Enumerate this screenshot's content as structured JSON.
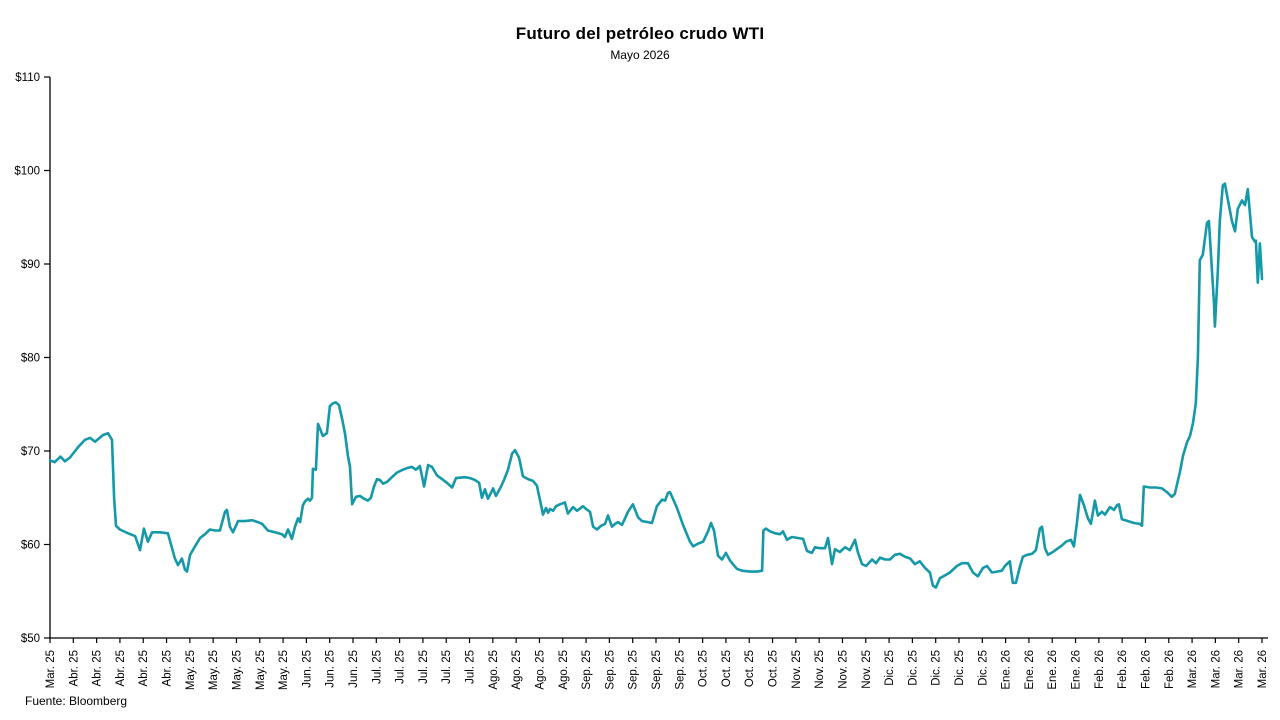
{
  "chart_data": {
    "type": "line",
    "title": "Futuro del petróleo crudo WTI",
    "subtitle": "Mayo 2026",
    "source": "Fuente: Bloomberg",
    "line_color": "#1598A8",
    "axis_color": "#000000",
    "text_color": "#000000",
    "grid": false,
    "legend_position": "none",
    "ylim": [
      50,
      110
    ],
    "y_tick_labels": [
      "$110",
      "$100",
      "$90",
      "$80",
      "$70",
      "$60",
      "$50"
    ],
    "y_tick_values": [
      110,
      100,
      90,
      80,
      70,
      60,
      50
    ],
    "x_range_weeks": [
      0,
      52
    ],
    "x_tick_labels": [
      "Mar. 25",
      "Abr. 25",
      "Abr. 25",
      "Abr. 25",
      "Abr. 25",
      "Abr. 25",
      "May. 25",
      "May. 25",
      "May. 25",
      "May. 25",
      "May. 25",
      "Jun. 25",
      "Jun. 25",
      "Jun. 25",
      "Jul. 25",
      "Jul. 25",
      "Jul. 25",
      "Jul. 25",
      "Jul. 25",
      "Ago. 25",
      "Ago. 25",
      "Ago. 25",
      "Ago. 25",
      "Sep. 25",
      "Sep. 25",
      "Sep. 25",
      "Sep. 25",
      "Sep. 25",
      "Oct. 25",
      "Oct. 25",
      "Oct. 25",
      "Oct. 25",
      "Nov. 25",
      "Nov. 25",
      "Nov. 25",
      "Nov. 25",
      "Dic. 25",
      "Dic. 25",
      "Dic. 25",
      "Dic. 25",
      "Dic. 25",
      "Ene. 26",
      "Ene. 26",
      "Ene. 26",
      "Ene. 26",
      "Feb. 26",
      "Feb. 26",
      "Feb. 26",
      "Feb. 26",
      "Mar. 26",
      "Mar. 26",
      "Mar. 26",
      "Mar. 26"
    ],
    "points": [
      [
        0,
        69
      ],
      [
        0.2,
        68.8
      ],
      [
        0.45,
        69.4
      ],
      [
        0.64,
        68.9
      ],
      [
        0.86,
        69.3
      ],
      [
        1.2,
        70.4
      ],
      [
        1.5,
        71.2
      ],
      [
        1.72,
        71.4
      ],
      [
        1.93,
        71
      ],
      [
        2.27,
        71.7
      ],
      [
        2.49,
        71.9
      ],
      [
        2.66,
        71.2
      ],
      [
        2.75,
        65
      ],
      [
        2.83,
        62
      ],
      [
        3,
        61.6
      ],
      [
        3.35,
        61.2
      ],
      [
        3.65,
        60.9
      ],
      [
        3.86,
        59.4
      ],
      [
        4.03,
        61.7
      ],
      [
        4.2,
        60.3
      ],
      [
        4.38,
        61.3
      ],
      [
        4.72,
        61.3
      ],
      [
        5.06,
        61.2
      ],
      [
        5.36,
        58.5
      ],
      [
        5.49,
        57.8
      ],
      [
        5.66,
        58.5
      ],
      [
        5.79,
        57.3
      ],
      [
        5.88,
        57.1
      ],
      [
        6.01,
        58.9
      ],
      [
        6.22,
        59.8
      ],
      [
        6.44,
        60.7
      ],
      [
        6.65,
        61.1
      ],
      [
        6.86,
        61.6
      ],
      [
        7.08,
        61.5
      ],
      [
        7.29,
        61.5
      ],
      [
        7.51,
        63.5
      ],
      [
        7.59,
        63.7
      ],
      [
        7.72,
        61.9
      ],
      [
        7.85,
        61.3
      ],
      [
        8.07,
        62.5
      ],
      [
        8.37,
        62.5
      ],
      [
        8.67,
        62.6
      ],
      [
        8.92,
        62.4
      ],
      [
        9.1,
        62.2
      ],
      [
        9.35,
        61.5
      ],
      [
        9.65,
        61.3
      ],
      [
        9.95,
        61.1
      ],
      [
        10.08,
        60.8
      ],
      [
        10.21,
        61.6
      ],
      [
        10.38,
        60.6
      ],
      [
        10.51,
        61.9
      ],
      [
        10.64,
        62.8
      ],
      [
        10.73,
        62.4
      ],
      [
        10.85,
        64.2
      ],
      [
        10.94,
        64.6
      ],
      [
        11.07,
        64.9
      ],
      [
        11.15,
        64.7
      ],
      [
        11.24,
        65
      ],
      [
        11.28,
        68.1
      ],
      [
        11.41,
        68
      ],
      [
        11.5,
        72.9
      ],
      [
        11.71,
        71.6
      ],
      [
        11.88,
        71.9
      ],
      [
        12.01,
        74.8
      ],
      [
        12.14,
        75.1
      ],
      [
        12.27,
        75.2
      ],
      [
        12.4,
        74.9
      ],
      [
        12.53,
        73.5
      ],
      [
        12.66,
        71.8
      ],
      [
        12.78,
        69.5
      ],
      [
        12.87,
        68.3
      ],
      [
        12.96,
        64.3
      ],
      [
        13.13,
        65.1
      ],
      [
        13.3,
        65.2
      ],
      [
        13.47,
        64.9
      ],
      [
        13.64,
        64.7
      ],
      [
        13.77,
        65
      ],
      [
        13.9,
        66.2
      ],
      [
        14.03,
        67
      ],
      [
        14.16,
        66.9
      ],
      [
        14.29,
        66.5
      ],
      [
        14.46,
        66.7
      ],
      [
        14.67,
        67.2
      ],
      [
        14.89,
        67.7
      ],
      [
        15.14,
        68
      ],
      [
        15.36,
        68.2
      ],
      [
        15.53,
        68.3
      ],
      [
        15.7,
        68
      ],
      [
        15.87,
        68.4
      ],
      [
        16.05,
        66.2
      ],
      [
        16.22,
        68.5
      ],
      [
        16.39,
        68.3
      ],
      [
        16.6,
        67.4
      ],
      [
        16.82,
        67
      ],
      [
        17.03,
        66.6
      ],
      [
        17.25,
        66.1
      ],
      [
        17.42,
        67.1
      ],
      [
        17.81,
        67.2
      ],
      [
        18.02,
        67.1
      ],
      [
        18.23,
        66.9
      ],
      [
        18.41,
        66.6
      ],
      [
        18.53,
        65
      ],
      [
        18.66,
        65.9
      ],
      [
        18.79,
        64.9
      ],
      [
        19.01,
        66
      ],
      [
        19.13,
        65.2
      ],
      [
        19.31,
        66
      ],
      [
        19.48,
        66.9
      ],
      [
        19.65,
        68
      ],
      [
        19.82,
        69.7
      ],
      [
        19.95,
        70.1
      ],
      [
        20.12,
        69.3
      ],
      [
        20.29,
        67.3
      ],
      [
        20.51,
        67
      ],
      [
        20.72,
        66.8
      ],
      [
        20.89,
        66.3
      ],
      [
        21.06,
        64.3
      ],
      [
        21.15,
        63.2
      ],
      [
        21.28,
        63.9
      ],
      [
        21.37,
        63.4
      ],
      [
        21.45,
        63.8
      ],
      [
        21.58,
        63.6
      ],
      [
        21.71,
        64.1
      ],
      [
        21.88,
        64.3
      ],
      [
        22.09,
        64.5
      ],
      [
        22.22,
        63.3
      ],
      [
        22.44,
        64
      ],
      [
        22.61,
        63.6
      ],
      [
        22.87,
        64.1
      ],
      [
        23,
        63.8
      ],
      [
        23.17,
        63.5
      ],
      [
        23.3,
        61.9
      ],
      [
        23.47,
        61.6
      ],
      [
        23.64,
        62
      ],
      [
        23.81,
        62.2
      ],
      [
        23.94,
        63.1
      ],
      [
        24.11,
        61.9
      ],
      [
        24.24,
        62.2
      ],
      [
        24.37,
        62.4
      ],
      [
        24.54,
        62.1
      ],
      [
        24.8,
        63.5
      ],
      [
        25.01,
        64.3
      ],
      [
        25.23,
        62.9
      ],
      [
        25.4,
        62.5
      ],
      [
        25.66,
        62.4
      ],
      [
        25.83,
        62.3
      ],
      [
        26.04,
        64.1
      ],
      [
        26.26,
        64.8
      ],
      [
        26.39,
        64.7
      ],
      [
        26.51,
        65.5
      ],
      [
        26.6,
        65.6
      ],
      [
        26.9,
        63.9
      ],
      [
        27.16,
        62.1
      ],
      [
        27.46,
        60.3
      ],
      [
        27.59,
        59.8
      ],
      [
        27.8,
        60.1
      ],
      [
        28.02,
        60.3
      ],
      [
        28.23,
        61.4
      ],
      [
        28.36,
        62.3
      ],
      [
        28.49,
        61.5
      ],
      [
        28.66,
        58.8
      ],
      [
        28.83,
        58.4
      ],
      [
        29,
        59.1
      ],
      [
        29.17,
        58.3
      ],
      [
        29.3,
        57.9
      ],
      [
        29.47,
        57.4
      ],
      [
        29.69,
        57.2
      ],
      [
        30.03,
        57.1
      ],
      [
        30.33,
        57.1
      ],
      [
        30.55,
        57.2
      ],
      [
        30.61,
        61.5
      ],
      [
        30.72,
        61.7
      ],
      [
        30.89,
        61.4
      ],
      [
        31.11,
        61.2
      ],
      [
        31.32,
        61.1
      ],
      [
        31.45,
        61.4
      ],
      [
        31.62,
        60.5
      ],
      [
        31.83,
        60.8
      ],
      [
        32.09,
        60.7
      ],
      [
        32.31,
        60.6
      ],
      [
        32.48,
        59.3
      ],
      [
        32.69,
        59.1
      ],
      [
        32.82,
        59.7
      ],
      [
        33.03,
        59.6
      ],
      [
        33.25,
        59.6
      ],
      [
        33.38,
        60.7
      ],
      [
        33.55,
        57.9
      ],
      [
        33.68,
        59.5
      ],
      [
        33.89,
        59.2
      ],
      [
        34.11,
        59.7
      ],
      [
        34.32,
        59.4
      ],
      [
        34.54,
        60.5
      ],
      [
        34.66,
        59.2
      ],
      [
        34.84,
        57.9
      ],
      [
        35.01,
        57.7
      ],
      [
        35.27,
        58.4
      ],
      [
        35.44,
        58
      ],
      [
        35.61,
        58.6
      ],
      [
        35.82,
        58.4
      ],
      [
        36.04,
        58.4
      ],
      [
        36.25,
        58.9
      ],
      [
        36.47,
        59
      ],
      [
        36.68,
        58.7
      ],
      [
        36.9,
        58.5
      ],
      [
        37.11,
        57.9
      ],
      [
        37.32,
        58.2
      ],
      [
        37.54,
        57.5
      ],
      [
        37.75,
        57
      ],
      [
        37.88,
        55.6
      ],
      [
        38.01,
        55.4
      ],
      [
        38.18,
        56.4
      ],
      [
        38.4,
        56.7
      ],
      [
        38.61,
        57
      ],
      [
        38.91,
        57.7
      ],
      [
        39.13,
        58
      ],
      [
        39.38,
        58
      ],
      [
        39.6,
        57
      ],
      [
        39.81,
        56.6
      ],
      [
        40.03,
        57.5
      ],
      [
        40.2,
        57.7
      ],
      [
        40.41,
        57
      ],
      [
        40.63,
        57.1
      ],
      [
        40.84,
        57.2
      ],
      [
        40.97,
        57.7
      ],
      [
        41.18,
        58.2
      ],
      [
        41.31,
        55.9
      ],
      [
        41.44,
        55.9
      ],
      [
        41.62,
        57.7
      ],
      [
        41.74,
        58.7
      ],
      [
        41.92,
        58.9
      ],
      [
        42.13,
        59
      ],
      [
        42.3,
        59.4
      ],
      [
        42.47,
        61.7
      ],
      [
        42.56,
        61.9
      ],
      [
        42.69,
        59.6
      ],
      [
        42.82,
        58.9
      ],
      [
        43.03,
        59.2
      ],
      [
        43.25,
        59.6
      ],
      [
        43.42,
        59.9
      ],
      [
        43.59,
        60.3
      ],
      [
        43.8,
        60.5
      ],
      [
        43.93,
        59.8
      ],
      [
        44.06,
        62.3
      ],
      [
        44.19,
        65.3
      ],
      [
        44.36,
        64.2
      ],
      [
        44.53,
        62.8
      ],
      [
        44.66,
        62.2
      ],
      [
        44.83,
        64.7
      ],
      [
        44.96,
        63.1
      ],
      [
        45.13,
        63.5
      ],
      [
        45.26,
        63.2
      ],
      [
        45.48,
        64
      ],
      [
        45.65,
        63.7
      ],
      [
        45.78,
        64.2
      ],
      [
        45.86,
        64.3
      ],
      [
        45.99,
        62.7
      ],
      [
        46.25,
        62.5
      ],
      [
        46.51,
        62.3
      ],
      [
        46.76,
        62.2
      ],
      [
        46.85,
        62
      ],
      [
        46.93,
        66.2
      ],
      [
        47.19,
        66.1
      ],
      [
        47.45,
        66.1
      ],
      [
        47.71,
        66
      ],
      [
        47.92,
        65.6
      ],
      [
        48.13,
        65.1
      ],
      [
        48.26,
        65.4
      ],
      [
        48.48,
        67.8
      ],
      [
        48.61,
        69.5
      ],
      [
        48.78,
        70.9
      ],
      [
        48.91,
        71.6
      ],
      [
        49.04,
        73
      ],
      [
        49.16,
        75.1
      ],
      [
        49.25,
        80
      ],
      [
        49.33,
        90.4
      ],
      [
        49.46,
        91
      ],
      [
        49.64,
        94.4
      ],
      [
        49.72,
        94.6
      ],
      [
        49.85,
        89.4
      ],
      [
        49.94,
        85.8
      ],
      [
        49.98,
        83.3
      ],
      [
        50.11,
        89.4
      ],
      [
        50.19,
        94.6
      ],
      [
        50.32,
        98.4
      ],
      [
        50.41,
        98.6
      ],
      [
        50.54,
        96.8
      ],
      [
        50.71,
        94.6
      ],
      [
        50.84,
        93.5
      ],
      [
        50.96,
        95.9
      ],
      [
        51.14,
        96.8
      ],
      [
        51.27,
        96.3
      ],
      [
        51.39,
        98
      ],
      [
        51.57,
        92.9
      ],
      [
        51.69,
        92.4
      ],
      [
        51.74,
        92.5
      ],
      [
        51.82,
        88
      ],
      [
        51.91,
        92.2
      ],
      [
        52,
        88.4
      ]
    ]
  }
}
